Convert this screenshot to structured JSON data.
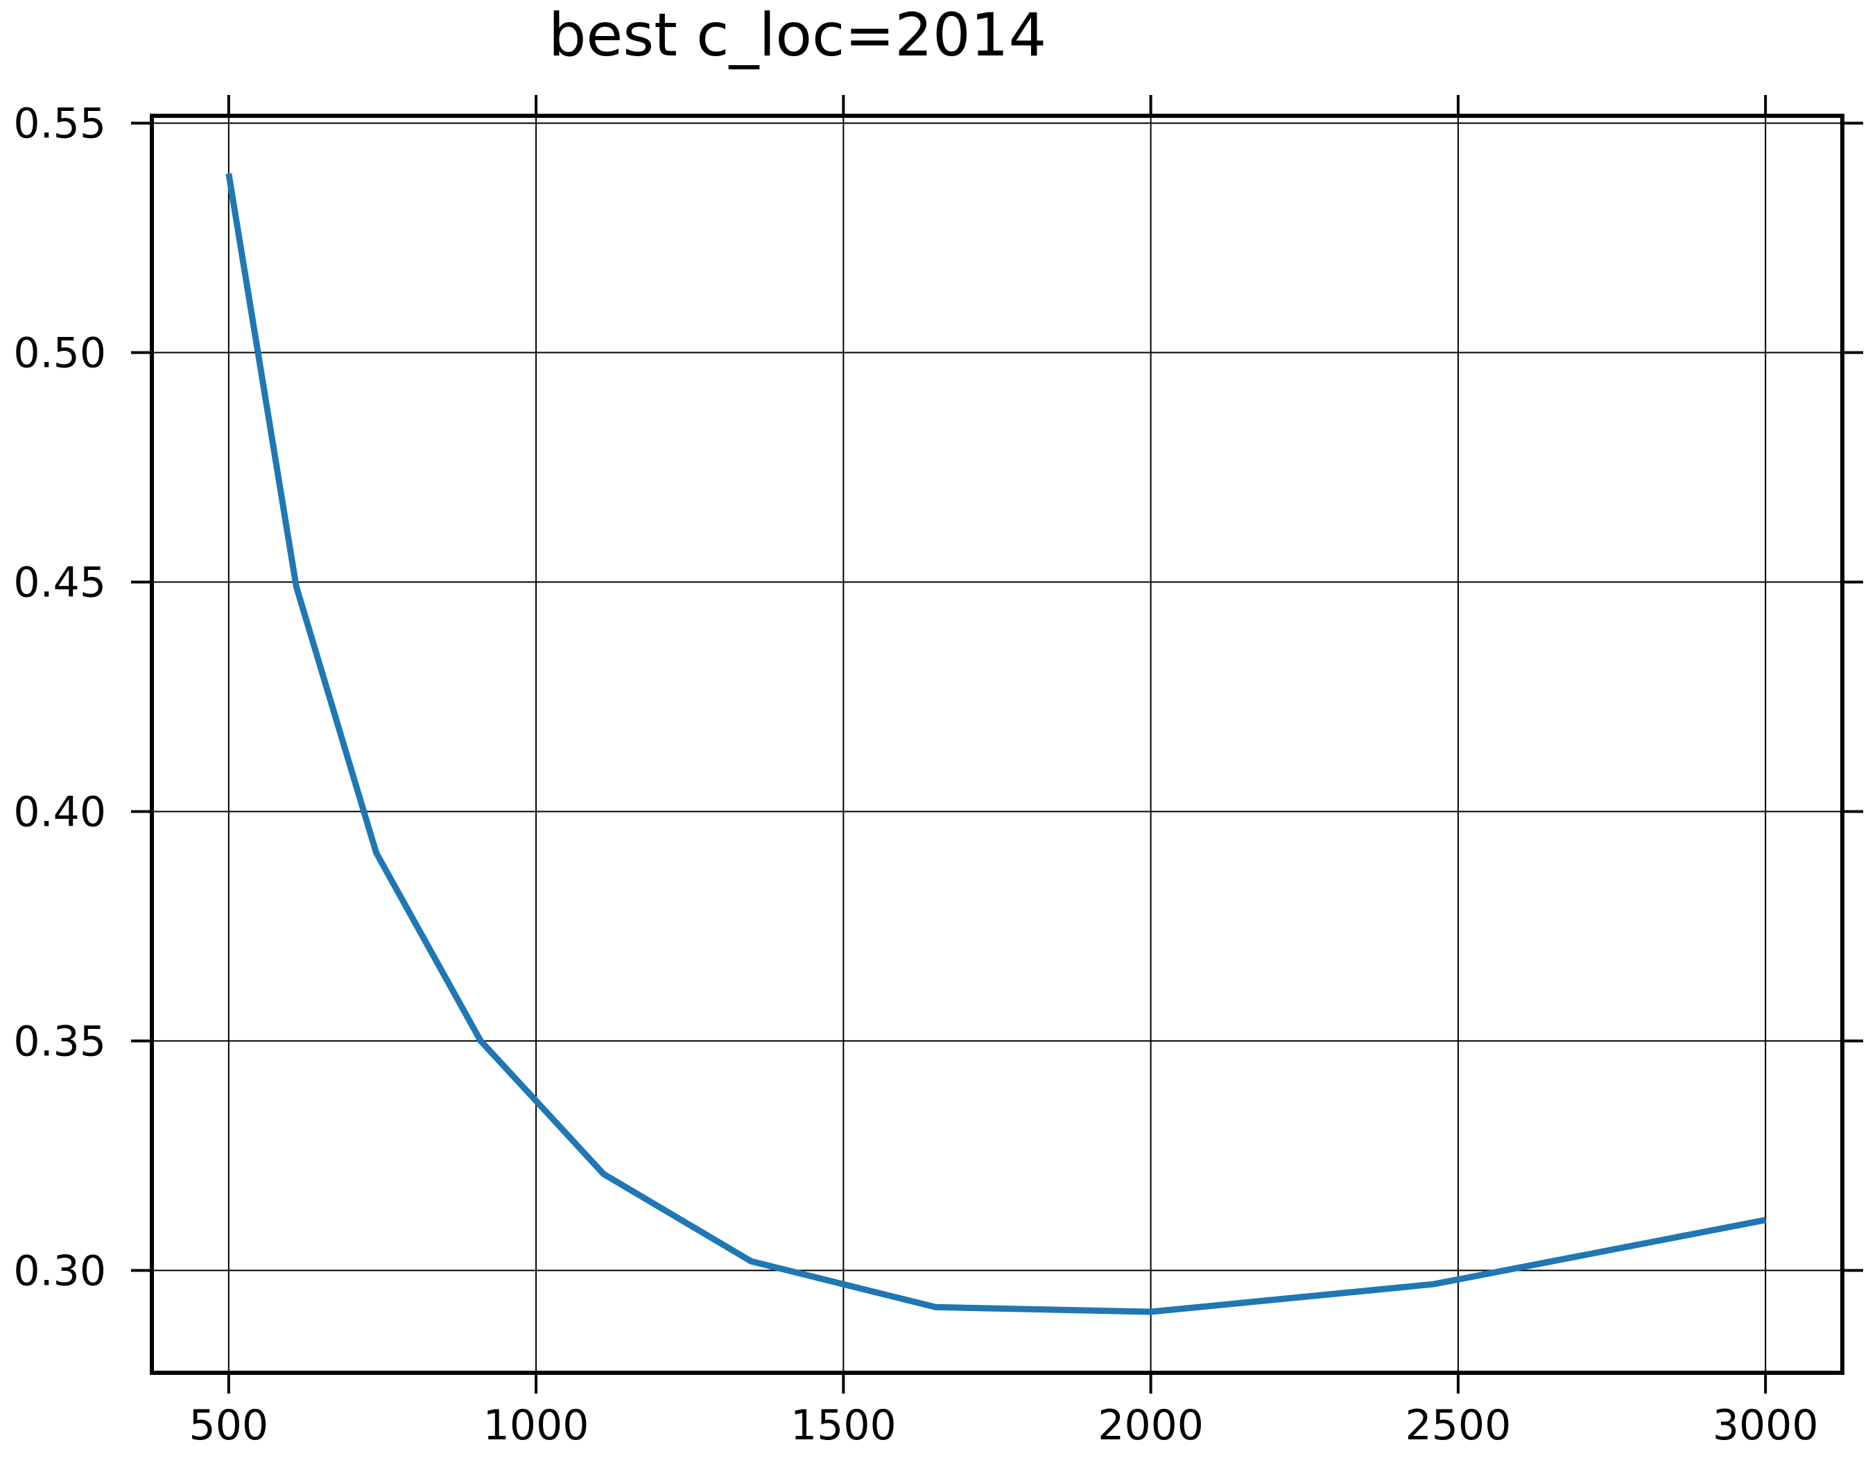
{
  "chart_data": {
    "type": "line",
    "title": "best c_loc=2014",
    "xlabel": "",
    "ylabel": "",
    "xlim": [
      375,
      3125
    ],
    "ylim": [
      0.2777,
      0.5516
    ],
    "xticks": [
      500,
      1000,
      1500,
      2000,
      2500,
      3000
    ],
    "xtick_labels": [
      "500",
      "1000",
      "1500",
      "2000",
      "2500",
      "3000"
    ],
    "yticks": [
      0.3,
      0.35,
      0.4,
      0.45,
      0.5,
      0.55
    ],
    "ytick_labels": [
      "0.30",
      "0.35",
      "0.40",
      "0.45",
      "0.50",
      "0.55"
    ],
    "grid": true,
    "legend": "none",
    "series": [
      {
        "color": "#1f77b4",
        "x": [
          500,
          610,
          740,
          910,
          1110,
          1350,
          1650,
          2000,
          2460,
          3000
        ],
        "y": [
          0.539,
          0.449,
          0.391,
          0.35,
          0.321,
          0.302,
          0.292,
          0.291,
          0.297,
          0.311
        ]
      }
    ]
  }
}
